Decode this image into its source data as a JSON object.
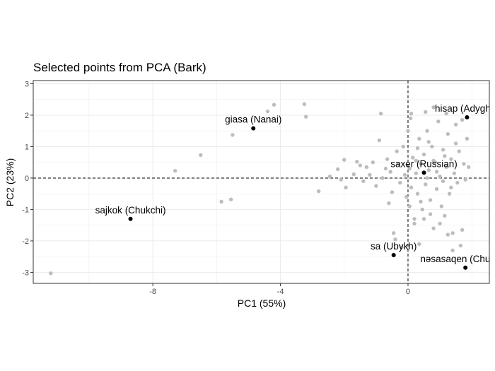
{
  "chart_data": {
    "type": "scatter",
    "title": "Selected points from PCA (Bark)",
    "xlabel": "PC1 (55%)",
    "ylabel": "PC2 (23%)",
    "xlim": [
      -11.75,
      2.55
    ],
    "ylim": [
      -3.35,
      3.1
    ],
    "xticks": [
      -8,
      -4,
      0
    ],
    "yticks": [
      3,
      2,
      1,
      0,
      -1,
      -2,
      -3
    ],
    "tick_labels_x": [
      "-8",
      "-4",
      "0"
    ],
    "tick_labels_y": [
      "3",
      "2",
      "1",
      "0",
      "-1",
      "-2",
      "-3"
    ],
    "grid": true,
    "reference_lines": {
      "x": 0,
      "y": 0,
      "style": "dashed"
    },
    "colors": {
      "background_points": "#bdbdbd",
      "highlighted_points": "#000000",
      "grid": "#ebebeb",
      "panel_border": "#333333"
    },
    "highlighted": [
      {
        "label": "hisap (Adyghe)",
        "x": 1.85,
        "y": 1.93
      },
      {
        "label": "giasa (Nanai)",
        "x": -4.85,
        "y": 1.58
      },
      {
        "label": "saxer (Russian)",
        "x": 0.5,
        "y": 0.17
      },
      {
        "label": "sajkok (Chukchi)",
        "x": -8.7,
        "y": -1.3
      },
      {
        "label": "sa (Ubykh)",
        "x": -0.45,
        "y": -2.45
      },
      {
        "label": "nəsasaqen (Chukchi)",
        "x": 1.8,
        "y": -2.85
      }
    ],
    "background": [
      [
        -11.2,
        -3.03
      ],
      [
        -7.3,
        0.23
      ],
      [
        -6.5,
        0.73
      ],
      [
        -5.85,
        -0.75
      ],
      [
        -5.55,
        -0.68
      ],
      [
        -5.5,
        1.37
      ],
      [
        -4.4,
        2.12
      ],
      [
        -4.2,
        2.33
      ],
      [
        -3.25,
        2.35
      ],
      [
        -3.2,
        1.95
      ],
      [
        -2.8,
        -0.42
      ],
      [
        -2.45,
        0.05
      ],
      [
        -2.2,
        0.28
      ],
      [
        -2.1,
        -0.05
      ],
      [
        -2.0,
        0.58
      ],
      [
        -1.95,
        -0.3
      ],
      [
        -1.7,
        0.12
      ],
      [
        -1.6,
        0.52
      ],
      [
        -1.5,
        0.4
      ],
      [
        -1.4,
        -0.1
      ],
      [
        -1.3,
        0.35
      ],
      [
        -1.2,
        0.1
      ],
      [
        -1.1,
        0.5
      ],
      [
        -1.0,
        -0.25
      ],
      [
        -0.9,
        1.2
      ],
      [
        -0.85,
        2.05
      ],
      [
        -0.8,
        0.0
      ],
      [
        -0.7,
        0.3
      ],
      [
        -0.65,
        0.6
      ],
      [
        -0.6,
        -0.8
      ],
      [
        -0.55,
        0.2
      ],
      [
        -0.5,
        -0.45
      ],
      [
        -0.45,
        -1.75
      ],
      [
        -0.4,
        -1.95
      ],
      [
        -0.35,
        0.85
      ],
      [
        -0.3,
        0.45
      ],
      [
        -0.25,
        -0.15
      ],
      [
        -0.2,
        -2.2
      ],
      [
        -0.15,
        1.0
      ],
      [
        -0.1,
        0.1
      ],
      [
        -0.05,
        -0.6
      ],
      [
        0.0,
        1.5
      ],
      [
        0.05,
        0.3
      ],
      [
        0.05,
        -0.9
      ],
      [
        0.08,
        1.9
      ],
      [
        0.1,
        -0.3
      ],
      [
        0.15,
        0.65
      ],
      [
        0.2,
        -1.3
      ],
      [
        0.25,
        0.15
      ],
      [
        0.3,
        -0.5
      ],
      [
        0.35,
        1.25
      ],
      [
        0.35,
        -2.1
      ],
      [
        0.4,
        0.45
      ],
      [
        0.45,
        -1.0
      ],
      [
        0.5,
        0.75
      ],
      [
        0.55,
        -0.2
      ],
      [
        0.6,
        1.5
      ],
      [
        0.65,
        0.25
      ],
      [
        0.7,
        -0.7
      ],
      [
        0.75,
        1.0
      ],
      [
        0.8,
        -1.6
      ],
      [
        0.85,
        0.5
      ],
      [
        0.9,
        -0.35
      ],
      [
        0.95,
        1.8
      ],
      [
        1.0,
        0.05
      ],
      [
        1.05,
        -0.9
      ],
      [
        1.1,
        0.9
      ],
      [
        1.15,
        -1.2
      ],
      [
        1.2,
        0.35
      ],
      [
        1.25,
        1.4
      ],
      [
        1.3,
        -0.5
      ],
      [
        1.35,
        0.6
      ],
      [
        1.4,
        -1.75
      ],
      [
        1.45,
        0.15
      ],
      [
        1.5,
        1.1
      ],
      [
        1.55,
        -0.15
      ],
      [
        1.6,
        0.85
      ],
      [
        1.65,
        -2.15
      ],
      [
        1.7,
        1.85
      ],
      [
        1.75,
        0.45
      ],
      [
        1.8,
        -0.05
      ],
      [
        1.85,
        1.25
      ],
      [
        1.9,
        0.35
      ],
      [
        0.1,
        2.05
      ],
      [
        0.55,
        2.1
      ],
      [
        0.8,
        2.25
      ],
      [
        1.2,
        2.05
      ],
      [
        1.5,
        1.7
      ],
      [
        0.2,
        -1.45
      ],
      [
        0.5,
        -1.3
      ],
      [
        0.7,
        -1.15
      ],
      [
        1.0,
        -1.45
      ],
      [
        1.25,
        -1.8
      ],
      [
        1.4,
        -2.3
      ],
      [
        1.7,
        -1.65
      ],
      [
        0.3,
        0.95
      ],
      [
        0.6,
        0.0
      ],
      [
        0.9,
        0.2
      ],
      [
        1.1,
        -0.1
      ],
      [
        0.4,
        -0.75
      ],
      [
        0.8,
        0.55
      ],
      [
        1.35,
        -0.3
      ],
      [
        0.25,
        0.55
      ],
      [
        0.65,
        1.15
      ],
      [
        1.15,
        0.7
      ]
    ]
  }
}
